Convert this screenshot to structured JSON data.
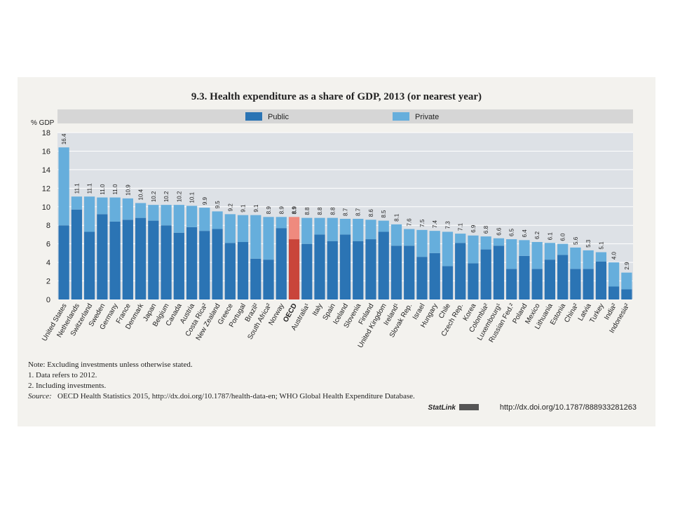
{
  "chart_data": {
    "type": "stacked-bar",
    "title": "9.3. Health expenditure as a share of GDP, 2013 (or nearest year)",
    "y_label": "% GDP",
    "categories": [
      "United States",
      "Netherlands",
      "Switzerland",
      "Sweden",
      "Germany",
      "France",
      "Denmark",
      "Japan",
      "Belgium",
      "Canada",
      "Austria",
      "Costa Rica²",
      "New Zealand",
      "Greece",
      "Portugal",
      "Brazil²",
      "South Africa²",
      "Norway",
      "OECD",
      "Australia¹",
      "Italy",
      "Spain",
      "Iceland",
      "Slovenia",
      "Finland",
      "United Kingdom",
      "Ireland¹",
      "Slovak Rep.",
      "Israel",
      "Hungary",
      "Chile",
      "Czech Rep.",
      "Korea",
      "Colombia²",
      "Luxembourg¹",
      "Russian Fed.²",
      "Poland",
      "Mexico",
      "Lithuania",
      "Estonia",
      "China²",
      "Latvia",
      "Turkey",
      "India²",
      "Indonesia²"
    ],
    "series": [
      {
        "name": "Public",
        "color": "#2b74b4",
        "highlight_color": "#c9453a",
        "values": [
          8.0,
          9.7,
          7.3,
          9.2,
          8.4,
          8.6,
          8.8,
          8.5,
          8.0,
          7.2,
          7.8,
          7.4,
          7.6,
          6.1,
          6.2,
          4.4,
          4.3,
          7.7,
          6.5,
          6.0,
          7.0,
          6.3,
          7.0,
          6.3,
          6.5,
          7.3,
          5.8,
          5.8,
          4.6,
          5.0,
          3.6,
          6.1,
          3.9,
          5.4,
          5.8,
          3.3,
          4.7,
          3.3,
          4.3,
          4.8,
          3.3,
          3.3,
          4.1,
          1.4,
          1.1
        ]
      },
      {
        "name": "Private",
        "color": "#66aedc",
        "highlight_color": "#ef8a7e",
        "values": [
          8.4,
          1.4,
          3.8,
          1.8,
          2.6,
          2.3,
          1.6,
          1.7,
          2.2,
          3.0,
          2.3,
          2.5,
          1.9,
          3.1,
          2.9,
          4.7,
          4.6,
          1.2,
          2.4,
          2.8,
          1.8,
          2.5,
          1.7,
          2.4,
          2.1,
          1.2,
          2.3,
          1.8,
          2.9,
          2.4,
          3.7,
          1.0,
          3.0,
          1.4,
          0.8,
          3.2,
          1.7,
          2.9,
          1.8,
          1.2,
          2.3,
          2.0,
          1.0,
          2.6,
          1.8
        ]
      }
    ],
    "total_labels": [
      "16.4",
      "11.1",
      "11.1",
      "11.0",
      "11.0",
      "10.9",
      "10.4",
      "10.2",
      "10.2",
      "10.2",
      "10.1",
      "9.9",
      "9.5",
      "9.2",
      "9.1",
      "9.1",
      "8.9",
      "8.9",
      "8.9",
      "8.8",
      "8.8",
      "8.8",
      "8.7",
      "8.7",
      "8.6",
      "8.5",
      "8.1",
      "7.6",
      "7.5",
      "7.4",
      "7.3",
      "7.1",
      "6.9",
      "6.8",
      "6.6",
      "6.5",
      "6.4",
      "6.2",
      "6.1",
      "6.0",
      "5.6",
      "5.3",
      "5.1",
      "4.0",
      "2.9"
    ],
    "highlight": "OECD",
    "ylim": [
      0,
      18
    ],
    "yticks": [
      0,
      2,
      4,
      6,
      8,
      10,
      12,
      14,
      16,
      18
    ],
    "grid": true,
    "notes": [
      "Note: Excluding investments unless otherwise stated.",
      "1.  Data refers to 2012.",
      "2.  Including investments."
    ],
    "source_label": "Source:",
    "source": "OECD Health Statistics 2015, http://dx.doi.org/10.1787/health-data-en; WHO Global Health Expenditure Database.",
    "statlink_label": "StatLink",
    "statlink": "http://dx.doi.org/10.1787/888933281263"
  }
}
